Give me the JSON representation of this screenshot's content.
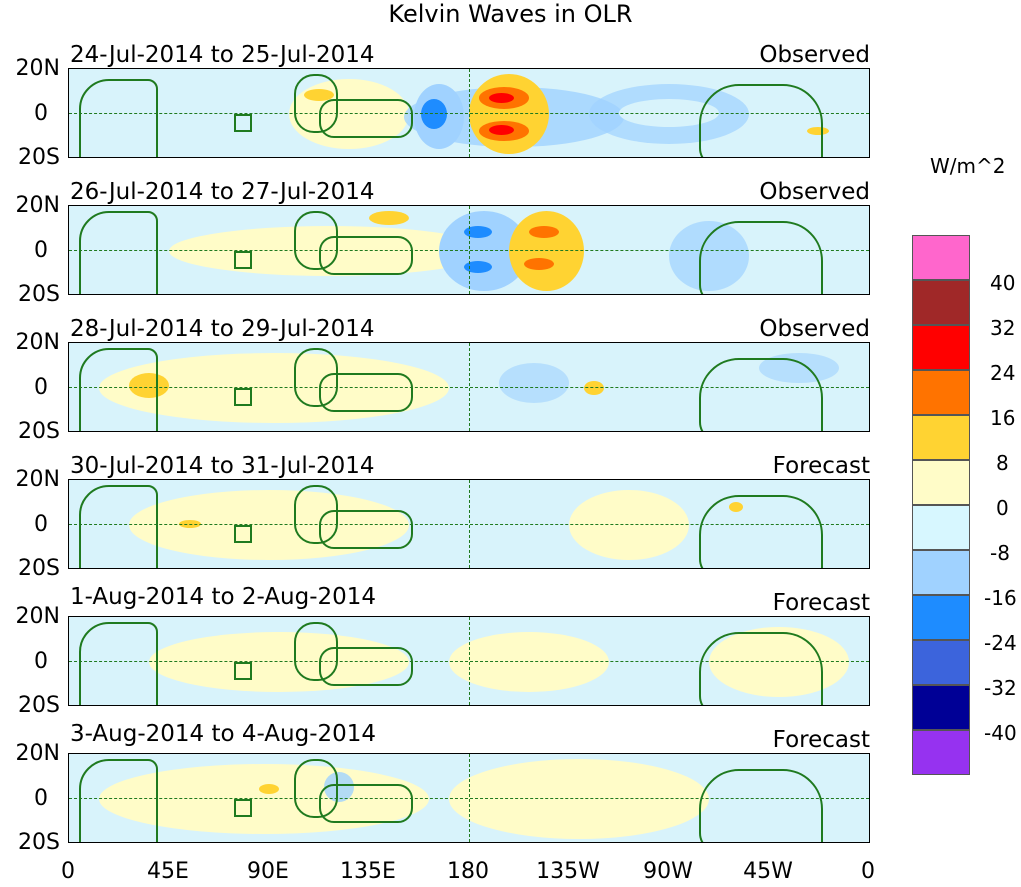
{
  "chart_data": {
    "type": "heatmap",
    "title": "Kelvin Waves in OLR",
    "units": "W/m^2",
    "x_ticks": [
      "0",
      "45E",
      "90E",
      "135E",
      "180",
      "135W",
      "90W",
      "45W",
      "0"
    ],
    "y_ticks": [
      "20N",
      "0",
      "20S"
    ],
    "colorbar": {
      "labels": [
        "40",
        "32",
        "24",
        "16",
        "8",
        "0",
        "-8",
        "-16",
        "-24",
        "-32",
        "-40"
      ],
      "colors": [
        "#ff66cc",
        "#a02828",
        "#ff0000",
        "#ff7300",
        "#ffd332",
        "#fffcc8",
        "#d7f7ff",
        "#a0d2ff",
        "#1e8cff",
        "#3c64dc",
        "#000096",
        "#9632f0"
      ]
    },
    "panels": [
      {
        "title": "24-Jul-2014 to 25-Jul-2014",
        "status": "Observed"
      },
      {
        "title": "26-Jul-2014 to 27-Jul-2014",
        "status": "Observed"
      },
      {
        "title": "28-Jul-2014 to 29-Jul-2014",
        "status": "Observed"
      },
      {
        "title": "30-Jul-2014 to 31-Jul-2014",
        "status": "Forecast"
      },
      {
        "title": "1-Aug-2014 to 2-Aug-2014",
        "status": "Forecast"
      },
      {
        "title": "3-Aug-2014 to 4-Aug-2014",
        "status": "Forecast"
      }
    ]
  }
}
